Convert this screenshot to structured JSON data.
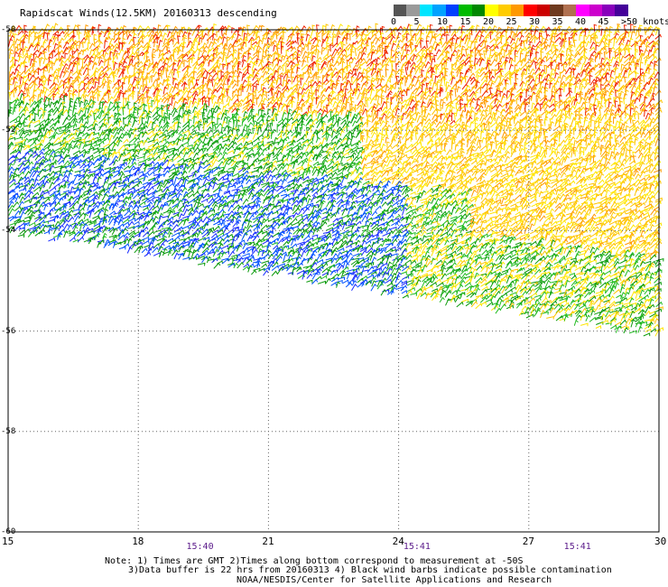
{
  "title": "Rapidscat Winds(12.5KM) 20160313 descending",
  "legend": {
    "colors": [
      "#555555",
      "#9a9a9a",
      "#00e5ff",
      "#00a2ff",
      "#0040ff",
      "#00bb00",
      "#008800",
      "#ffff00",
      "#ffcc00",
      "#ff9900",
      "#ff0000",
      "#cc0000",
      "#6e3a1e",
      "#b07050",
      "#ff00ff",
      "#cc00cc",
      "#8800bb",
      "#440099"
    ],
    "labels": [
      "0",
      "5",
      "10",
      "15",
      "20",
      "25",
      "30",
      "35",
      "40",
      "45",
      ">50 knots"
    ],
    "unit": "knots"
  },
  "map": {
    "lat_labels": [
      "-50",
      "-52",
      "-54",
      "-56",
      "-58",
      "-60"
    ],
    "lat_values": [
      -50,
      -52,
      -54,
      -56,
      -58,
      -60
    ],
    "lon_labels": [
      "15",
      "18",
      "21",
      "24",
      "27",
      "30"
    ],
    "lon_values": [
      15,
      18,
      21,
      24,
      27,
      30
    ],
    "lon_range": [
      15,
      30
    ],
    "lat_range": [
      -60,
      -50
    ],
    "grid": true,
    "time_labels": [
      {
        "text": "15:40",
        "lon": 19.4
      },
      {
        "text": "15:41",
        "lon": 24.4
      },
      {
        "text": "15:41",
        "lon": 28.1
      }
    ]
  },
  "notes": {
    "line1": "Note: 1) Times are GMT 2)Times along bottom correspond to measurement at -50S",
    "line2": "3)Data buffer is 22 hrs from 20160313 4) Black wind barbs indicate possible contamination",
    "line3": "NOAA/NESDIS/Center for Satellite Applications and Research"
  }
}
